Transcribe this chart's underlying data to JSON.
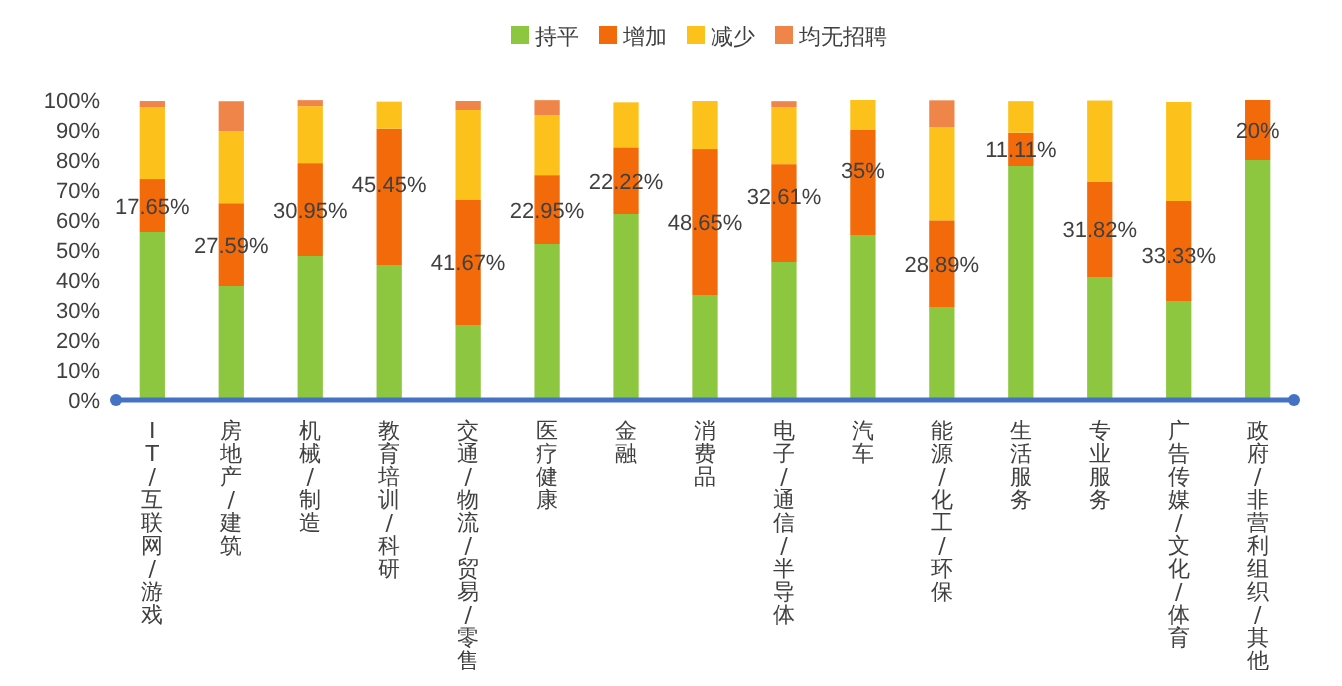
{
  "chart_data": {
    "type": "bar",
    "stacked": true,
    "legend": "top",
    "categories": [
      "IT/互联网/游戏",
      "房地产/建筑",
      "机械/制造",
      "教育培训/科研",
      "交通/物流/贸易/零售",
      "医疗健康",
      "金融",
      "消费品",
      "电子/通信/半导体",
      "汽车",
      "能源/化工/环保",
      "生活服务",
      "专业服务",
      "广告传媒/文化/体育",
      "政府/非营利组织/其他"
    ],
    "ylim": [
      0,
      100
    ],
    "yticks": [
      {
        "value": 0,
        "label": "0%"
      },
      {
        "value": 10,
        "label": "10%"
      },
      {
        "value": 20,
        "label": "20%"
      },
      {
        "value": 30,
        "label": "30%"
      },
      {
        "value": 40,
        "label": "40%"
      },
      {
        "value": 50,
        "label": "50%"
      },
      {
        "value": 60,
        "label": "60%"
      },
      {
        "value": 70,
        "label": "70%"
      },
      {
        "value": 80,
        "label": "80%"
      },
      {
        "value": 90,
        "label": "90%"
      },
      {
        "value": 100,
        "label": "100%"
      }
    ],
    "series": [
      {
        "name": "持平",
        "color": "#8dc63f",
        "values": [
          56,
          38,
          48,
          45,
          25,
          52,
          62,
          35,
          46,
          55,
          31,
          78,
          41,
          33,
          80
        ]
      },
      {
        "name": "增加",
        "color": "#f26a0a",
        "values": [
          17.65,
          27.59,
          30.95,
          45.45,
          41.67,
          22.95,
          22.22,
          48.65,
          32.61,
          35,
          28.89,
          11.11,
          31.82,
          33.33,
          20
        ],
        "value_labels": [
          "17.65%",
          "27.59%",
          "30.95%",
          "45.45%",
          "41.67%",
          "22.95%",
          "22.22%",
          "48.65%",
          "32.61%",
          "35%",
          "28.89%",
          "11.11%",
          "31.82%",
          "33.33%",
          "20%"
        ]
      },
      {
        "name": "减少",
        "color": "#fcc21b",
        "values": [
          24,
          24,
          19,
          9,
          30,
          20,
          15,
          16,
          19,
          10,
          31,
          10.5,
          27,
          33,
          0
        ]
      },
      {
        "name": "均无招聘",
        "color": "#f0854a",
        "values": [
          2,
          10,
          2,
          0,
          3,
          5,
          0,
          0,
          2,
          0,
          9,
          0,
          0,
          0,
          0
        ]
      }
    ]
  }
}
